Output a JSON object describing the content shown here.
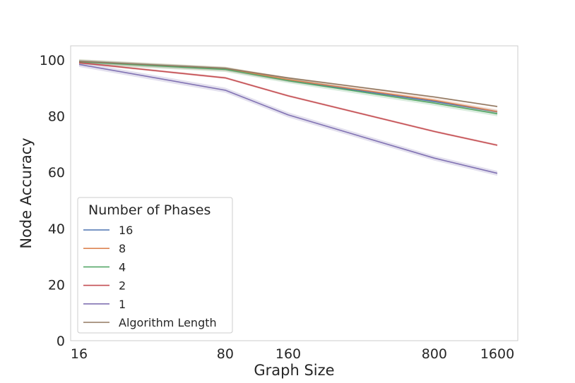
{
  "chart_data": {
    "type": "line",
    "title": "",
    "xlabel": "Graph Size",
    "ylabel": "Node Accuracy",
    "x_scale": "log",
    "x": [
      16,
      80,
      160,
      800,
      1600
    ],
    "xticks": [
      "16",
      "80",
      "160",
      "800",
      "1600"
    ],
    "yticks": [
      "0",
      "20",
      "40",
      "60",
      "80",
      "100"
    ],
    "ylim": [
      0,
      105
    ],
    "grid": false,
    "legend": {
      "title": "Number of Phases",
      "placement": "lower-left"
    },
    "series": [
      {
        "name": "16",
        "color": "#4c72b0",
        "values": [
          99.4,
          96.8,
          92.8,
          85.2,
          81.5
        ],
        "band": 0.6
      },
      {
        "name": "8",
        "color": "#dd8452",
        "values": [
          99.4,
          96.8,
          93.0,
          85.6,
          81.6
        ],
        "band": 0.8
      },
      {
        "name": "4",
        "color": "#55a868",
        "values": [
          99.3,
          96.6,
          92.6,
          84.6,
          80.8
        ],
        "band": 0.9
      },
      {
        "name": "2",
        "color": "#c44e52",
        "values": [
          99.0,
          93.6,
          87.2,
          74.5,
          69.6
        ],
        "band": 0.4
      },
      {
        "name": "1",
        "color": "#8172b3",
        "values": [
          98.4,
          89.2,
          80.4,
          65.0,
          59.6
        ],
        "band": 0.9
      },
      {
        "name": "Algorithm Length",
        "color": "#937860",
        "values": [
          99.5,
          97.0,
          93.6,
          86.8,
          83.4
        ],
        "band": 0.3
      }
    ]
  }
}
